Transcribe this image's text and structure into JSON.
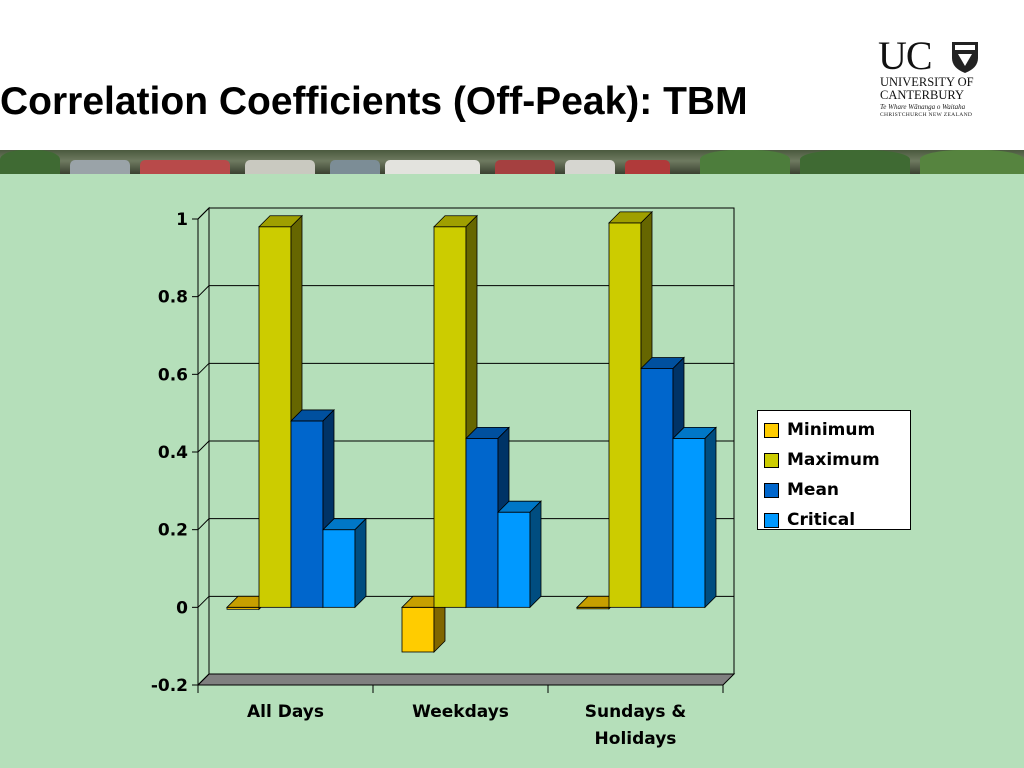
{
  "slide": {
    "title": "Correlation Coefficients (Off-Peak): TBM"
  },
  "logo": {
    "mark": "UC",
    "line1": "UNIVERSITY OF",
    "line2": "CANTERBURY",
    "line3": "Te Whare Wānanga o Waitaha",
    "line4": "CHRISTCHURCH NEW ZEALAND"
  },
  "chart_data": {
    "type": "bar",
    "style": "3d-clustered-column",
    "categories": [
      [
        "All Days"
      ],
      [
        "Weekdays"
      ],
      [
        "Sundays &",
        "Holidays"
      ]
    ],
    "series": [
      {
        "name": "Minimum",
        "values": [
          -0.005,
          -0.115,
          0.0
        ],
        "color": "#ffcc00"
      },
      {
        "name": "Maximum",
        "values": [
          0.98,
          0.98,
          0.99
        ],
        "color": "#cccc00"
      },
      {
        "name": "Mean",
        "values": [
          0.48,
          0.435,
          0.615
        ],
        "color": "#0066cc"
      },
      {
        "name": "Critical",
        "values": [
          0.2,
          0.245,
          0.435
        ],
        "color": "#0099ff"
      }
    ],
    "ylim": [
      -0.2,
      1
    ],
    "yticks": [
      1,
      0.8,
      0.6,
      0.4,
      0.2,
      0,
      -0.2
    ],
    "gridlines": true,
    "legend_position": "right",
    "floor_color": "#808080",
    "plot_background": "#b5dfba"
  }
}
